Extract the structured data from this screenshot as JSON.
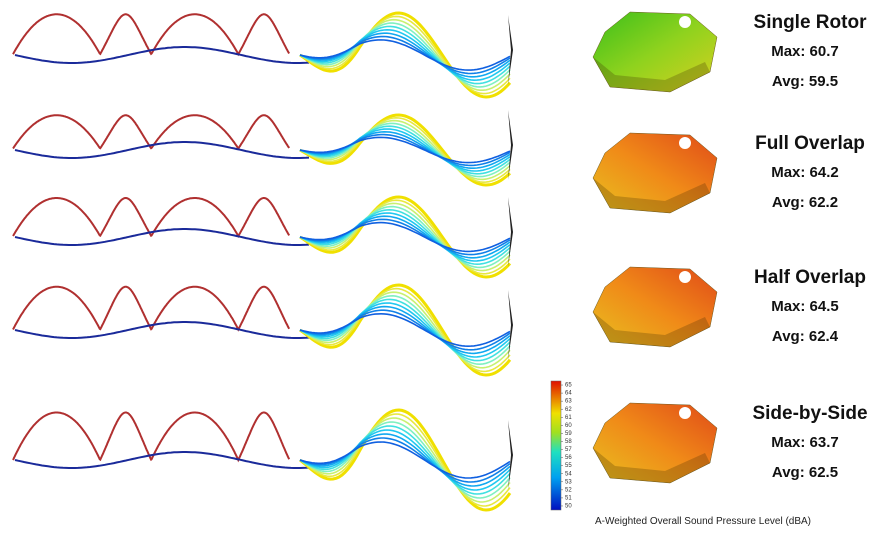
{
  "panels": [
    {
      "title": "Single Rotor",
      "max": "Max: 60.7",
      "avg": "Avg: 59.5"
    },
    {
      "title": "Full Overlap",
      "max": "Max: 64.2",
      "avg": "Avg: 62.2"
    },
    {
      "title": "Half Overlap",
      "max": "Max: 64.5",
      "avg": "Avg: 62.4"
    },
    {
      "title": "Side-by-Side",
      "max": "Max: 63.7",
      "avg": "Avg: 62.5"
    }
  ],
  "colorbar": {
    "ticks": [
      65,
      64,
      63,
      62,
      61,
      60,
      59,
      58,
      57,
      56,
      55,
      54,
      53,
      52,
      51,
      50
    ]
  },
  "caption": "A-Weighted Overall Sound Pressure Level (dBA)"
}
